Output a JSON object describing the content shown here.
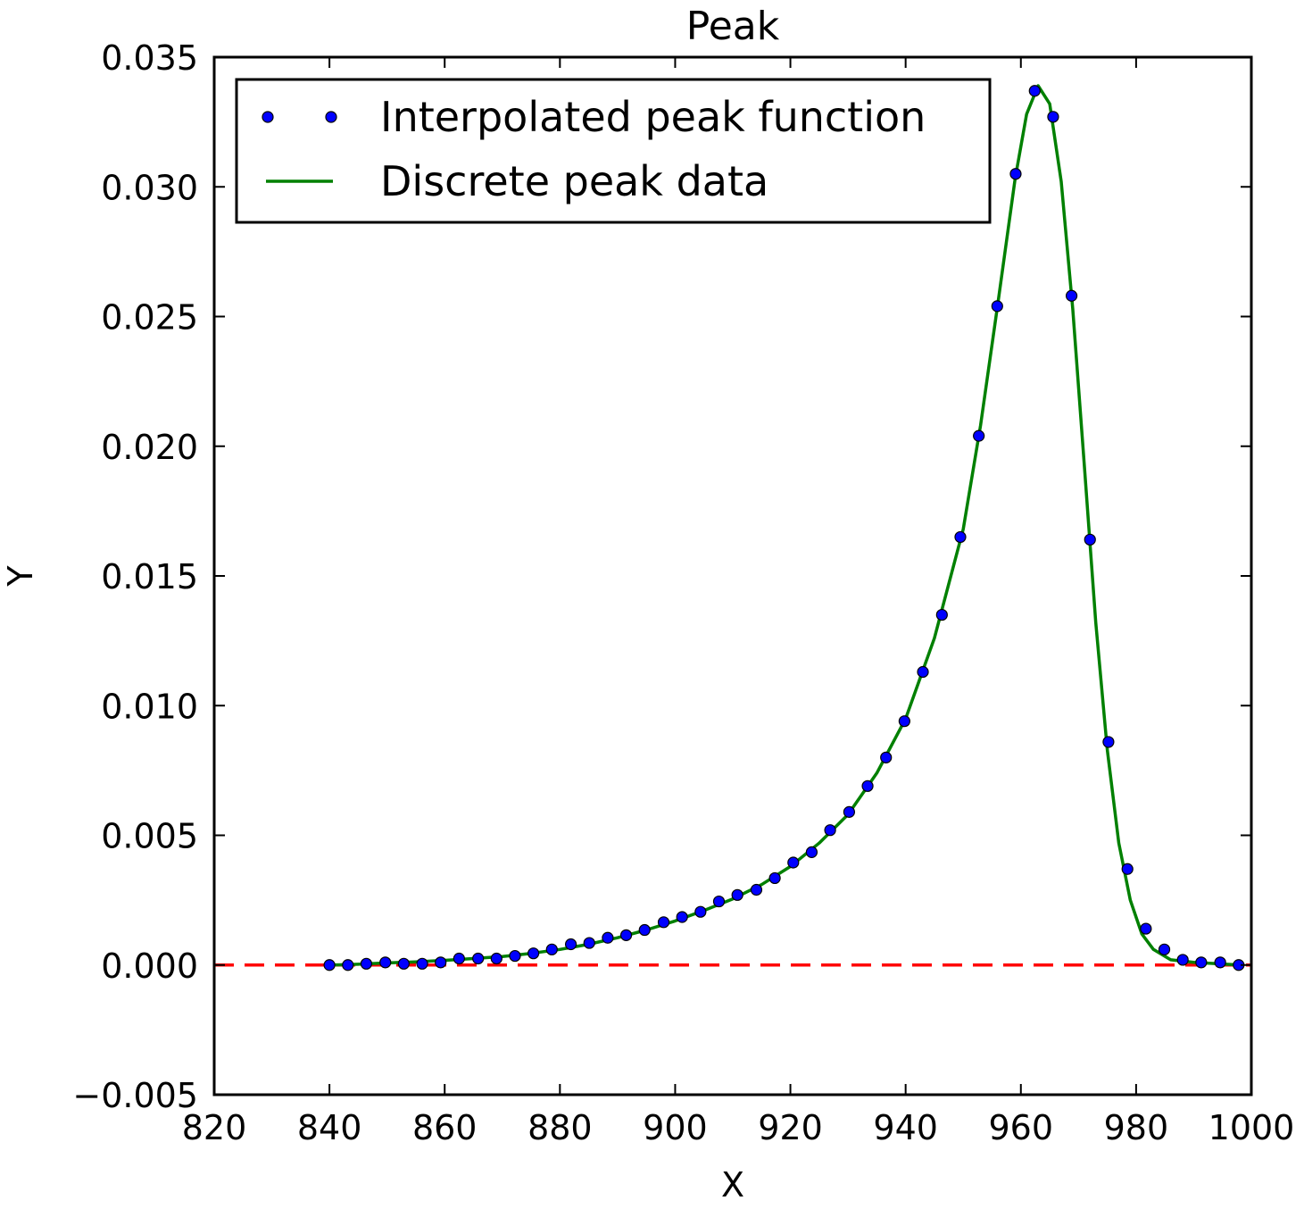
{
  "chart_data": {
    "type": "line",
    "title": "Peak",
    "xlabel": "X",
    "ylabel": "Y",
    "xlim": [
      820,
      1000
    ],
    "ylim": [
      -0.005,
      0.035
    ],
    "xticks": [
      820,
      840,
      860,
      880,
      900,
      920,
      940,
      960,
      980,
      1000
    ],
    "xtick_labels": [
      "820",
      "840",
      "860",
      "880",
      "900",
      "920",
      "940",
      "960",
      "980",
      "1000"
    ],
    "yticks": [
      -0.005,
      0.0,
      0.005,
      0.01,
      0.015,
      0.02,
      0.025,
      0.03,
      0.035
    ],
    "ytick_labels": [
      "−0.005",
      "0.000",
      "0.005",
      "0.010",
      "0.015",
      "0.020",
      "0.025",
      "0.030",
      "0.035"
    ],
    "grid": false,
    "legend_position": "top-left",
    "series": [
      {
        "name": "Interpolated peak function",
        "style": "markers",
        "color": "#0000ff",
        "x": [
          840.0,
          843.2,
          846.4,
          849.7,
          852.9,
          856.1,
          859.3,
          862.5,
          865.8,
          869.0,
          872.2,
          875.4,
          878.6,
          881.9,
          885.1,
          888.3,
          891.5,
          894.7,
          898.0,
          901.2,
          904.4,
          907.6,
          910.8,
          914.1,
          917.3,
          920.5,
          923.7,
          926.9,
          930.2,
          933.4,
          936.6,
          939.8,
          943.0,
          946.3,
          949.5,
          952.7,
          955.9,
          959.1,
          962.4,
          965.6,
          968.8,
          972.0,
          975.2,
          978.5,
          981.7,
          984.9,
          988.1,
          991.3,
          994.6,
          997.8
        ],
        "y": [
          0.0,
          0.0,
          5e-05,
          0.0001,
          5e-05,
          5e-05,
          0.0001,
          0.00025,
          0.00025,
          0.00025,
          0.00035,
          0.00045,
          0.0006,
          0.0008,
          0.00085,
          0.00105,
          0.00115,
          0.00135,
          0.00165,
          0.00185,
          0.00205,
          0.00245,
          0.0027,
          0.0029,
          0.00335,
          0.00395,
          0.00435,
          0.0052,
          0.0059,
          0.0069,
          0.008,
          0.0094,
          0.0113,
          0.0135,
          0.0165,
          0.0204,
          0.0254,
          0.0305,
          0.0337,
          0.0327,
          0.0258,
          0.0164,
          0.0086,
          0.0037,
          0.0014,
          0.0006,
          0.0002,
          0.0001,
          0.0001,
          0.0
        ]
      },
      {
        "name": "Discrete peak data",
        "style": "line",
        "color": "#008000",
        "x": [
          840,
          845,
          850,
          855,
          860,
          865,
          870,
          875,
          880,
          885,
          890,
          895,
          900,
          905,
          910,
          915,
          920,
          925,
          930,
          935,
          940,
          945,
          950,
          953,
          956,
          959,
          961,
          963,
          965,
          967,
          969,
          971,
          973,
          975,
          977,
          979,
          981,
          983,
          986,
          990,
          994,
          998
        ],
        "y": [
          0.0,
          3e-05,
          8e-05,
          0.00012,
          0.00018,
          0.00025,
          0.00033,
          0.00045,
          0.0006,
          0.0008,
          0.00105,
          0.00135,
          0.0017,
          0.0021,
          0.00255,
          0.0031,
          0.0038,
          0.0047,
          0.0058,
          0.0074,
          0.0095,
          0.0126,
          0.0168,
          0.0208,
          0.0255,
          0.0303,
          0.0328,
          0.0339,
          0.0332,
          0.0302,
          0.0253,
          0.0193,
          0.0132,
          0.0083,
          0.0047,
          0.0025,
          0.0012,
          0.0006,
          0.0002,
          0.0001,
          5e-05,
          0.0
        ]
      },
      {
        "name": "",
        "style": "dashed",
        "color": "#ff0000",
        "x": [
          820,
          1000
        ],
        "y": [
          0.0,
          0.0
        ]
      }
    ]
  }
}
